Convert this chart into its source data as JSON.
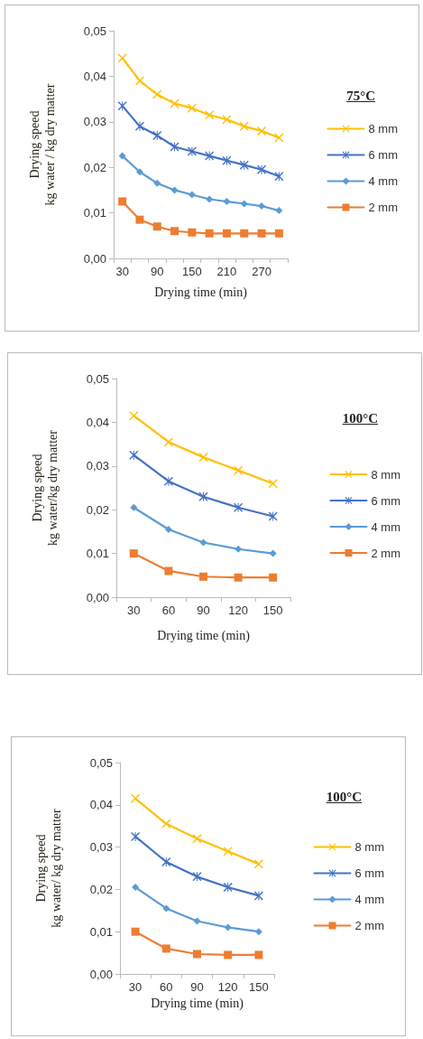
{
  "chart_data": [
    {
      "type": "line",
      "annotations": [
        "75°C"
      ],
      "xlabel": "Drying time (min)",
      "ylabel": "Drying speed\nkg water / kg dry matter",
      "categories": [
        "30",
        null,
        "90",
        null,
        "150",
        null,
        "210",
        null,
        "270",
        null
      ],
      "ylim": [
        0,
        0.05
      ],
      "yticks": [
        {
          "value": 0,
          "label": "0,00"
        },
        {
          "value": 0.01,
          "label": "0,01"
        },
        {
          "value": 0.02,
          "label": "0,02"
        },
        {
          "value": 0.03,
          "label": "0,03"
        },
        {
          "value": 0.04,
          "label": "0,04"
        },
        {
          "value": 0.05,
          "label": "0,05"
        }
      ],
      "grid": false,
      "legend": "right",
      "line_style": "solid",
      "series": [
        {
          "name": "8 mm",
          "color": "#ffc000",
          "marker": "cross",
          "values": [
            0.044,
            0.039,
            0.036,
            0.034,
            0.033,
            0.0315,
            0.0305,
            0.029,
            0.028,
            0.0265
          ]
        },
        {
          "name": "6 mm",
          "color": "#4472c4",
          "marker": "star",
          "values": [
            0.0335,
            0.029,
            0.027,
            0.0245,
            0.0235,
            0.0225,
            0.0215,
            0.0205,
            0.0195,
            0.018
          ]
        },
        {
          "name": "4 mm",
          "color": "#5b9bd5",
          "marker": "diamond",
          "values": [
            0.0225,
            0.019,
            0.0165,
            0.015,
            0.014,
            0.013,
            0.0125,
            0.012,
            0.0115,
            0.0105
          ]
        },
        {
          "name": "2 mm",
          "color": "#ed7d31",
          "marker": "square",
          "values": [
            0.0125,
            0.0085,
            0.007,
            0.006,
            0.0057,
            0.0055,
            0.0055,
            0.0055,
            0.0055,
            0.0055
          ]
        }
      ]
    },
    {
      "type": "line",
      "annotations": [
        "100°C"
      ],
      "xlabel": "Drying time (min)",
      "ylabel": "Drying speed\nkg water/kg dry matter",
      "categories": [
        "30",
        "60",
        "90",
        "120",
        "150"
      ],
      "ylim": [
        0,
        0.05
      ],
      "yticks": [
        {
          "value": 0,
          "label": "0,00"
        },
        {
          "value": 0.01,
          "label": "0,01"
        },
        {
          "value": 0.02,
          "label": "0,02"
        },
        {
          "value": 0.03,
          "label": "0,03"
        },
        {
          "value": 0.04,
          "label": "0,04"
        },
        {
          "value": 0.05,
          "label": "0,05"
        }
      ],
      "grid": false,
      "legend": "right",
      "line_style": "solid",
      "series": [
        {
          "name": "8 mm",
          "color": "#ffc000",
          "marker": "cross",
          "values": [
            0.0415,
            0.0355,
            0.032,
            0.029,
            0.026
          ]
        },
        {
          "name": "6 mm",
          "color": "#4472c4",
          "marker": "star",
          "values": [
            0.0325,
            0.0265,
            0.023,
            0.0205,
            0.0185
          ]
        },
        {
          "name": "4 mm",
          "color": "#5b9bd5",
          "marker": "diamond",
          "values": [
            0.0205,
            0.0155,
            0.0125,
            0.011,
            0.01
          ]
        },
        {
          "name": "2 mm",
          "color": "#ed7d31",
          "marker": "square",
          "values": [
            0.01,
            0.006,
            0.0047,
            0.0045,
            0.0045
          ]
        }
      ]
    },
    {
      "type": "line",
      "annotations": [
        "100°C"
      ],
      "xlabel": "Drying time (min)",
      "ylabel": "Drying speed\nkg water/ kg dry matter",
      "categories": [
        "30",
        "60",
        "90",
        "120",
        "150"
      ],
      "ylim": [
        0,
        0.05
      ],
      "yticks": [
        {
          "value": 0,
          "label": "0,00"
        },
        {
          "value": 0.01,
          "label": "0,01"
        },
        {
          "value": 0.02,
          "label": "0,02"
        },
        {
          "value": 0.03,
          "label": "0,03"
        },
        {
          "value": 0.04,
          "label": "0,04"
        },
        {
          "value": 0.05,
          "label": "0,05"
        }
      ],
      "grid": false,
      "legend": "right",
      "line_style": "solid",
      "series": [
        {
          "name": "8 mm",
          "color": "#ffc000",
          "marker": "cross",
          "values": [
            0.0415,
            0.0355,
            0.032,
            0.029,
            0.026
          ]
        },
        {
          "name": "6 mm",
          "color": "#4472c4",
          "marker": "star",
          "values": [
            0.0325,
            0.0265,
            0.023,
            0.0205,
            0.0185
          ]
        },
        {
          "name": "4 mm",
          "color": "#5b9bd5",
          "marker": "diamond",
          "values": [
            0.0205,
            0.0155,
            0.0125,
            0.011,
            0.01
          ]
        },
        {
          "name": "2 mm",
          "color": "#ed7d31",
          "marker": "square",
          "values": [
            0.01,
            0.006,
            0.0047,
            0.0045,
            0.0045
          ]
        }
      ]
    }
  ]
}
